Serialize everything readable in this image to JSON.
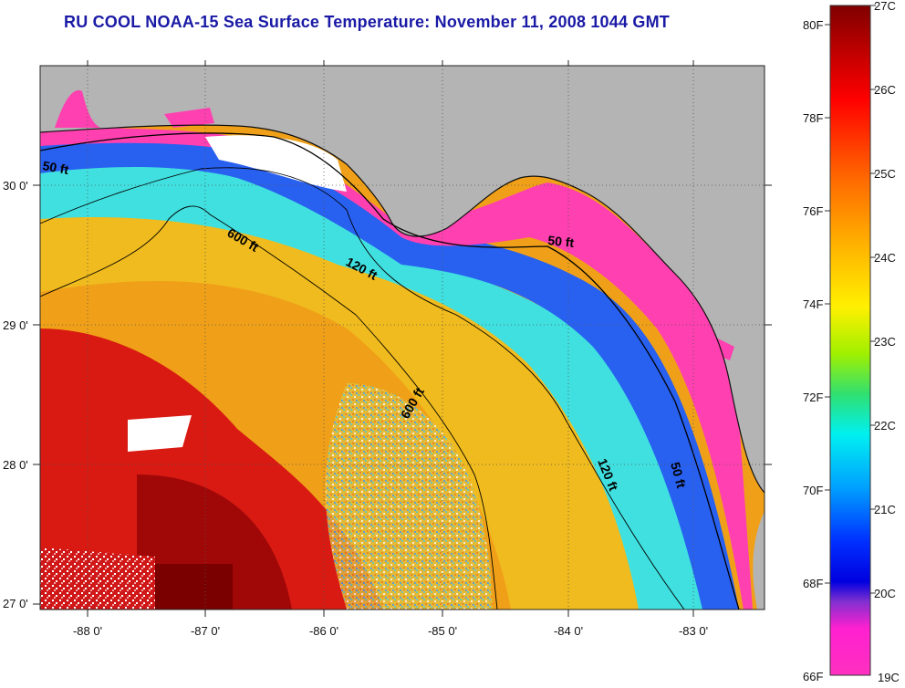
{
  "title": "RU COOL  NOAA-15  Sea Surface Temperature:  November 11, 2008 1044 GMT",
  "map": {
    "lon_labels": [
      "-88 0'",
      "-87 0'",
      "-86 0'",
      "-85 0'",
      "-84 0'",
      "-83 0'"
    ],
    "lat_labels": [
      "30 0'",
      "29 0'",
      "28 0'",
      "27 0'"
    ],
    "contour_labels": {
      "c50a": "50 ft",
      "c50b": "50 ft",
      "c50c": "50 ft",
      "c120a": "120 ft",
      "c120b": "120 ft",
      "c600a": "600 ft",
      "c600b": "600 ft"
    },
    "colors": {
      "land": "#b4b4b4",
      "no_data": "#ffffff",
      "warm": "#d40c0c",
      "hot": "#8c0000",
      "orange": "#f79a12",
      "yellow": "#f0e030",
      "cyan": "#30e0e8",
      "blue": "#1840f0",
      "magenta": "#ff40b0"
    }
  },
  "colorbar": {
    "fahrenheit_labels": [
      "80F",
      "78F",
      "76F",
      "74F",
      "72F",
      "70F",
      "68F",
      "66F"
    ],
    "celsius_labels": [
      "27C",
      "26C",
      "25C",
      "24C",
      "23C",
      "22C",
      "21C",
      "20C",
      "19C"
    ]
  }
}
